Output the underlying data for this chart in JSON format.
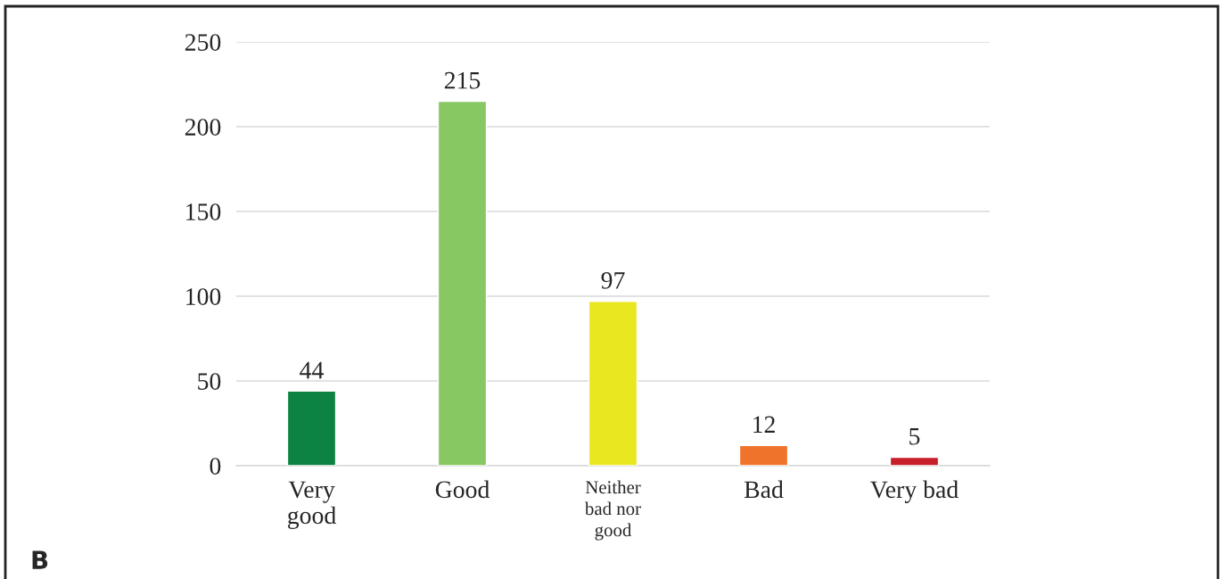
{
  "chart_data": {
    "type": "bar",
    "categories": [
      "Very\ngood",
      "Good",
      "Neither\nbad nor\ngood",
      "Bad",
      "Very bad"
    ],
    "values": [
      44,
      215,
      97,
      12,
      5
    ],
    "colors": [
      "#0c8342",
      "#88c862",
      "#e9e71f",
      "#f0732c",
      "#c8202a"
    ],
    "ylim": [
      0,
      250
    ],
    "yticks": [
      0,
      50,
      100,
      150,
      200,
      250
    ],
    "grid": "y",
    "data_labels": true,
    "legend": false,
    "annotations": [
      "B"
    ]
  }
}
